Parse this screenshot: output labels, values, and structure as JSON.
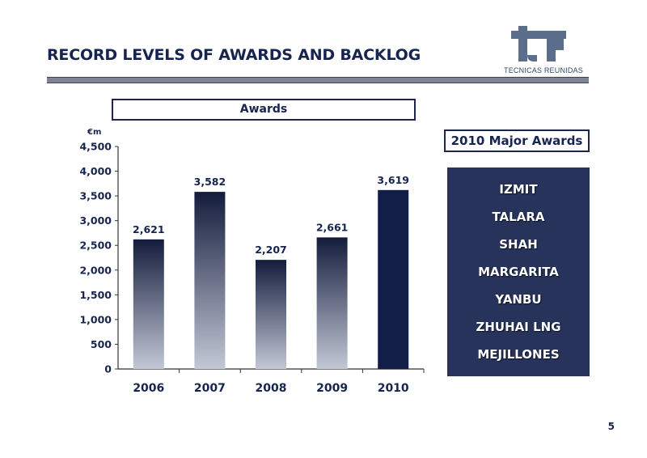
{
  "slide": {
    "title": "RECORD LEVELS OF AWARDS AND BACKLOG",
    "page_number": "5"
  },
  "logo": {
    "caption": "TECNICAS REUNIDAS",
    "color": "#5b6f8d"
  },
  "chart_data": {
    "type": "bar",
    "title": "Awards",
    "ylabel": "€m",
    "xlabel": "",
    "categories": [
      "2006",
      "2007",
      "2008",
      "2009",
      "2010"
    ],
    "values": [
      2621,
      3582,
      2207,
      2661,
      3619
    ],
    "value_labels": [
      "2,621",
      "3,582",
      "2,207",
      "2,661",
      "3,619"
    ],
    "ylim": [
      0,
      4500
    ],
    "yticks": [
      0,
      500,
      1000,
      1500,
      2000,
      2500,
      3000,
      3500,
      4000,
      4500
    ],
    "ytick_labels": [
      "0",
      "500",
      "1,000",
      "1,500",
      "2,000",
      "2,500",
      "3,000",
      "3,500",
      "4,000",
      "4,500"
    ],
    "grid": false,
    "legend": "none",
    "highlight_color": "#121d48",
    "gradient_top": "#141c3c",
    "gradient_bottom": "#c3c8d6"
  },
  "major_awards": {
    "title": "2010 Major Awards",
    "items": [
      "IZMIT",
      "TALARA",
      "SHAH",
      "MARGARITA",
      "YANBU",
      "ZHUHAI LNG",
      "MEJILLONES"
    ]
  }
}
